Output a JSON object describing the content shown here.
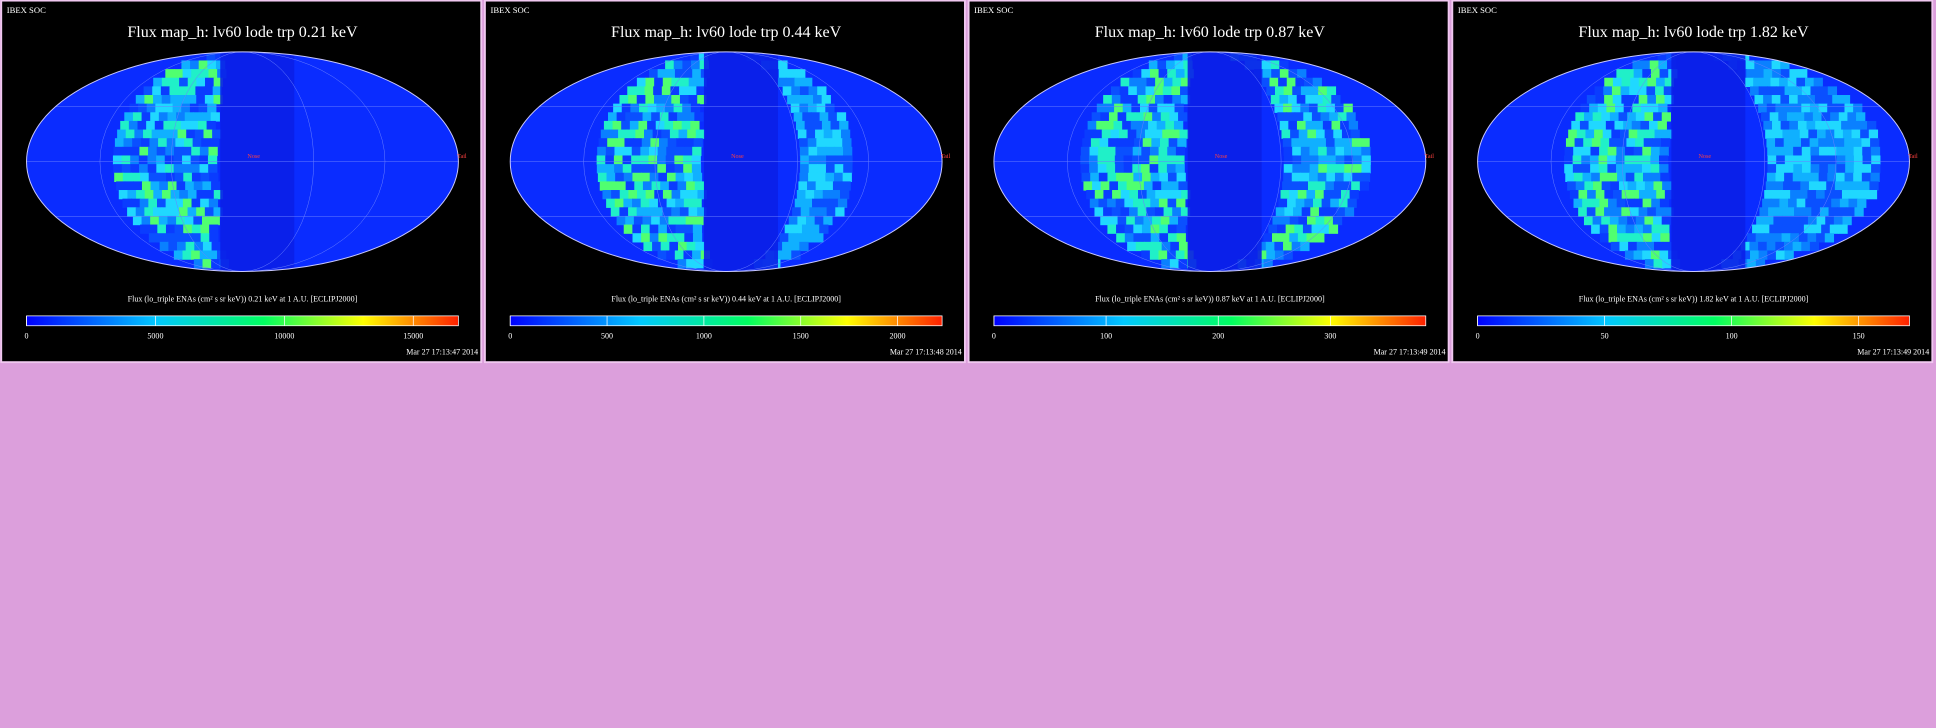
{
  "panels": [
    {
      "header": "IBEX SOC",
      "title": "Flux map_h: lv60 lode trp 0.21 keV",
      "colorbar": {
        "label": "Flux (lo_triple ENAs (cm² s sr keV)) 0.21 keV at 1 A.U. [ECLIPJ2000]",
        "lim": [
          0,
          16750
        ],
        "ticks": [
          0,
          5000,
          10000,
          15000
        ]
      },
      "map_labels": {
        "nose": "Nose",
        "tail": "Tail"
      },
      "timestamp": "Mar 27 17:13:47 2014"
    },
    {
      "header": "IBEX SOC",
      "title": "Flux map_h: lv60 lode trp 0.44 keV",
      "colorbar": {
        "label": "Flux (lo_triple ENAs (cm² s sr keV)) 0.44 keV at 1 A.U. [ECLIPJ2000]",
        "lim": [
          0,
          2230
        ],
        "ticks": [
          0,
          500,
          1000,
          1500,
          2000
        ]
      },
      "map_labels": {
        "nose": "Nose",
        "tail": "Tail"
      },
      "timestamp": "Mar 27 17:13:48 2014"
    },
    {
      "header": "IBEX SOC",
      "title": "Flux map_h: lv60 lode trp 0.87 keV",
      "colorbar": {
        "label": "Flux (lo_triple ENAs (cm² s sr keV)) 0.87 keV at 1 A.U. [ECLIPJ2000]",
        "lim": [
          0,
          385
        ],
        "ticks": [
          0,
          100,
          200,
          300
        ]
      },
      "map_labels": {
        "nose": "Nose",
        "tail": "Tail"
      },
      "timestamp": "Mar 27 17:13:49 2014"
    },
    {
      "header": "IBEX SOC",
      "title": "Flux map_h: lv60 lode trp 1.82 keV",
      "colorbar": {
        "label": "Flux (lo_triple ENAs (cm² s sr keV)) 1.82 keV at 1 A.U. [ECLIPJ2000]",
        "lim": [
          0,
          170
        ],
        "ticks": [
          0,
          50,
          100,
          150
        ]
      },
      "map_labels": {
        "nose": "Nose",
        "tail": "Tail"
      },
      "timestamp": "Mar 27 17:13:49 2014"
    }
  ]
}
